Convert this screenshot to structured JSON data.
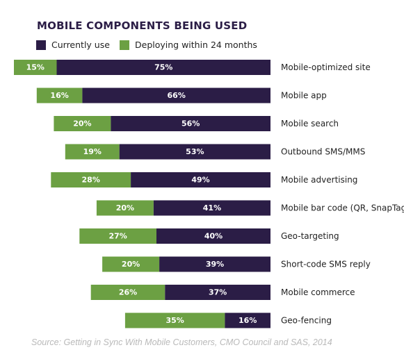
{
  "title": "MOBILE COMPONENTS BEING USED",
  "source": "Source: Getting in Sync With Mobile Customers, CMO Council and SAS, 2014",
  "colors": {
    "current": "#2b1d46",
    "deploying": "#6ca043",
    "label": "#ffffff",
    "category_text": "#222222"
  },
  "chart_data": {
    "type": "bar",
    "orientation": "horizontal",
    "stacked": true,
    "title": "MOBILE COMPONENTS BEING USED",
    "legend_position": "top-left",
    "categories": [
      "Mobile-optimized site",
      "Mobile app",
      "Mobile search",
      "Outbound SMS/MMS",
      "Mobile advertising",
      "Mobile bar code (QR, SnapTag)",
      "Geo-targeting",
      "Short-code SMS reply",
      "Mobile commerce",
      "Geo-fencing"
    ],
    "series": [
      {
        "name": "Currently use",
        "color": "#2b1d46",
        "values": [
          75,
          66,
          56,
          53,
          49,
          41,
          40,
          39,
          37,
          16
        ]
      },
      {
        "name": "Deploying within 24 months",
        "color": "#6ca043",
        "values": [
          15,
          16,
          20,
          19,
          28,
          20,
          27,
          20,
          26,
          35
        ]
      }
    ],
    "value_suffix": "%",
    "grid": false
  }
}
